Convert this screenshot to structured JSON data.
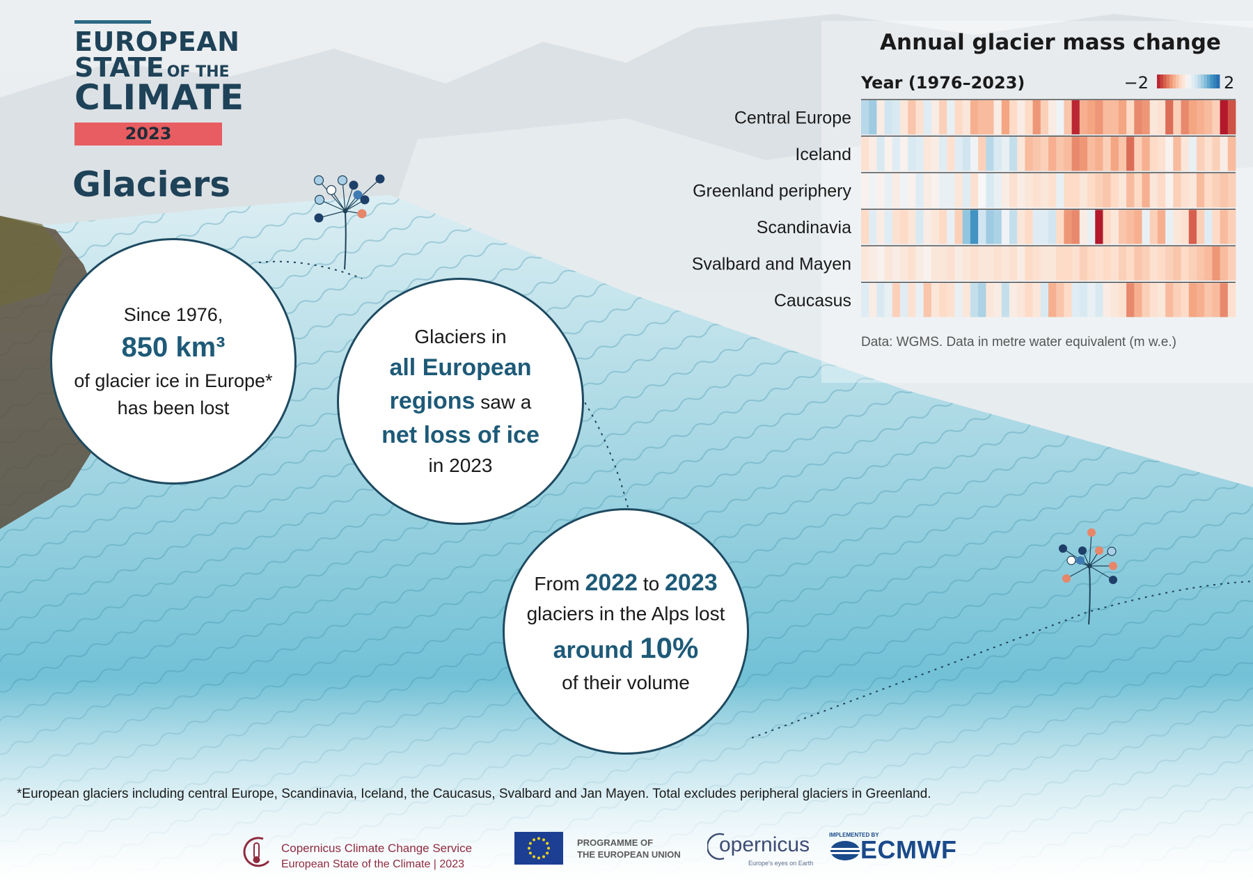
{
  "brand": {
    "line1": "EUROPEAN",
    "line2_big": "STATE",
    "line2_small": "OF THE",
    "line3": "CLIMATE",
    "year": "2023"
  },
  "topic": "Glaciers",
  "bubbles": {
    "b1": {
      "pre": "Since 1976,",
      "highlight": "850 km³",
      "post1": "of glacier ice in Europe*",
      "post2": "has been lost"
    },
    "b2": {
      "pre": "Glaciers in",
      "h1": "all European",
      "h2": "regions",
      "mid": " saw a",
      "h3": "net loss of ice",
      "post": "in 2023"
    },
    "b3": {
      "w1": "From ",
      "y1": "2022",
      "w2": " to ",
      "y2": "2023",
      "line2": "glaciers in the Alps lost",
      "h1": "around ",
      "h2": "10%",
      "post": "of their volume"
    }
  },
  "footnote": "*European glaciers including central Europe, Scandinavia, Iceland, the Caucasus, Svalbard and Jan Mayen. Total excludes peripheral glaciers in Greenland.",
  "chart_data": {
    "type": "heatmap",
    "title": "Annual glacier mass change",
    "xlabel": "Year (1976–2023)",
    "source": "Data: WGMS. Data in metre water equivalent (m w.e.)",
    "colorbar": {
      "min_label": "−2",
      "max_label": "2",
      "min": -2,
      "max": 2
    },
    "x": [
      1976,
      1977,
      1978,
      1979,
      1980,
      1981,
      1982,
      1983,
      1984,
      1985,
      1986,
      1987,
      1988,
      1989,
      1990,
      1991,
      1992,
      1993,
      1994,
      1995,
      1996,
      1997,
      1998,
      1999,
      2000,
      2001,
      2002,
      2003,
      2004,
      2005,
      2006,
      2007,
      2008,
      2009,
      2010,
      2011,
      2012,
      2013,
      2014,
      2015,
      2016,
      2017,
      2018,
      2019,
      2020,
      2021,
      2022,
      2023
    ],
    "rows": [
      {
        "region": "Central Europe",
        "values": [
          0.7,
          0.9,
          -0.2,
          0.5,
          0.4,
          -0.3,
          -0.7,
          -0.4,
          0.3,
          -0.2,
          -0.6,
          0.2,
          -0.5,
          -0.3,
          -0.9,
          -0.8,
          -0.8,
          -0.2,
          -1.0,
          -0.5,
          -0.2,
          -0.5,
          -1.1,
          -0.6,
          -0.2,
          0.1,
          -0.7,
          -1.9,
          -0.9,
          -1.0,
          -1.1,
          -0.8,
          -0.8,
          -1.0,
          -0.5,
          -1.2,
          -1.1,
          -0.3,
          -0.4,
          -1.4,
          -0.6,
          -1.2,
          -1.0,
          -0.9,
          -0.8,
          -0.6,
          -2.5,
          -1.6
        ]
      },
      {
        "region": "Iceland",
        "values": [
          -0.4,
          -0.2,
          0.4,
          -0.1,
          0.3,
          -0.1,
          0.4,
          0.3,
          -0.3,
          -0.2,
          0.3,
          -0.4,
          0.3,
          0.5,
          0.1,
          -0.6,
          0.7,
          0.4,
          0.2,
          0.6,
          -0.3,
          -0.8,
          -0.7,
          -0.6,
          -0.9,
          -0.7,
          -0.8,
          -1.2,
          -1.1,
          -0.8,
          -0.9,
          -0.6,
          -1.0,
          -0.7,
          -1.4,
          -0.6,
          -0.9,
          -0.5,
          -0.4,
          -0.1,
          -0.8,
          -0.3,
          0.2,
          -0.6,
          -0.4,
          -0.6,
          -0.2,
          -0.8
        ]
      },
      {
        "region": "Greenland periphery",
        "values": [
          -0.1,
          0.1,
          -0.1,
          0.2,
          -0.2,
          0.1,
          -0.1,
          0.3,
          -0.2,
          -0.1,
          0.2,
          0.2,
          -0.3,
          0.3,
          -0.4,
          0.0,
          0.4,
          0.2,
          -0.2,
          -0.4,
          -0.2,
          -0.3,
          -0.4,
          -0.3,
          -0.4,
          0.2,
          -0.5,
          -0.5,
          -0.3,
          -0.5,
          -0.6,
          -0.7,
          -0.5,
          -0.3,
          -0.8,
          -0.5,
          -0.9,
          -0.3,
          -0.5,
          -0.1,
          -0.6,
          -0.4,
          -0.3,
          -0.8,
          -0.5,
          -0.6,
          -0.7,
          -0.6
        ]
      },
      {
        "region": "Scandinavia",
        "values": [
          -0.5,
          0.3,
          -0.2,
          0.3,
          -0.4,
          -0.5,
          -0.3,
          0.4,
          -0.2,
          -0.3,
          -0.5,
          0.2,
          -0.6,
          1.0,
          1.5,
          0.5,
          0.9,
          0.8,
          0.1,
          0.6,
          -0.3,
          -0.5,
          0.3,
          0.3,
          0.5,
          -0.5,
          -1.1,
          -1.2,
          -0.2,
          0.2,
          -2.0,
          -0.5,
          -0.3,
          -0.7,
          -0.8,
          -0.9,
          0.2,
          -0.6,
          -0.9,
          0.2,
          -0.3,
          -0.4,
          -1.5,
          -0.6,
          0.3,
          -0.5,
          -0.8,
          -0.6
        ]
      },
      {
        "region": "Svalbard and Mayen",
        "values": [
          -0.3,
          -0.2,
          -0.1,
          -0.3,
          -0.2,
          -0.3,
          -0.4,
          -0.2,
          -0.1,
          -0.3,
          -0.3,
          -0.4,
          -0.2,
          -0.3,
          -0.4,
          -0.3,
          -0.3,
          -0.4,
          -0.3,
          -0.4,
          -0.2,
          -0.5,
          -0.4,
          -0.3,
          -0.3,
          -0.5,
          -0.5,
          -0.4,
          -0.6,
          -0.5,
          -0.4,
          -0.5,
          -0.4,
          -0.6,
          -0.5,
          -0.7,
          -0.6,
          -0.4,
          -0.5,
          -0.6,
          -0.7,
          -0.5,
          -0.6,
          -0.7,
          -0.8,
          -1.1,
          -0.8,
          -0.6
        ]
      },
      {
        "region": "Caucasus",
        "values": [
          0.3,
          -0.2,
          0.4,
          0.2,
          -0.6,
          0.3,
          -0.4,
          0.2,
          -0.7,
          -0.3,
          -0.5,
          -0.4,
          0.2,
          -0.3,
          0.6,
          0.8,
          -0.3,
          -0.2,
          0.6,
          -0.2,
          -0.3,
          -0.5,
          -0.3,
          0.4,
          -0.9,
          -0.7,
          -0.5,
          0.3,
          0.4,
          0.2,
          0.4,
          -0.2,
          -0.3,
          -0.4,
          -1.2,
          -0.9,
          -0.6,
          -0.4,
          -0.3,
          -0.8,
          -0.6,
          -0.5,
          -1.0,
          -0.9,
          -0.7,
          -0.8,
          -1.2,
          -0.4
        ]
      }
    ]
  },
  "footer": {
    "c3s_line1": "Copernicus Climate Change Service",
    "c3s_line2": "European State of the Climate | 2023",
    "eu_line1": "PROGRAMME OF",
    "eu_line2": "THE EUROPEAN UNION",
    "copernicus": "opernicus",
    "copernicus_sub": "Europe's eyes on Earth",
    "ecmwf_small": "IMPLEMENTED BY",
    "ecmwf": "ECMWF"
  },
  "colors": {
    "navy": "#1e4258",
    "badge": "#e85d61",
    "ice": "#7fc4d8"
  }
}
